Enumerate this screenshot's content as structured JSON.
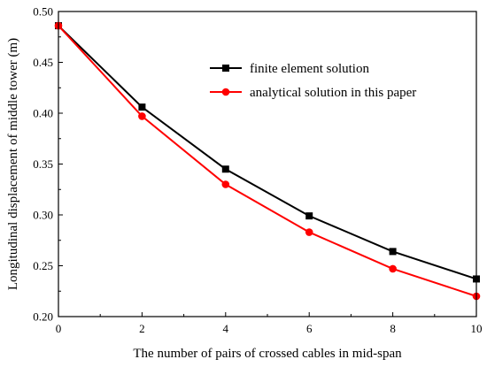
{
  "chart_data": {
    "type": "line",
    "xlabel": "The number of pairs of crossed cables in mid-span",
    "ylabel": "Longitudinal displacement of middle tower (m)",
    "xlim": [
      0,
      10
    ],
    "ylim": [
      0.2,
      0.5
    ],
    "xticks": [
      "0",
      "2",
      "4",
      "6",
      "8",
      "10"
    ],
    "yticks": [
      "0.20",
      "0.25",
      "0.30",
      "0.35",
      "0.40",
      "0.45",
      "0.50"
    ],
    "grid": false,
    "legend_position": "top-right",
    "x": [
      0,
      2,
      4,
      6,
      8,
      10
    ],
    "series": [
      {
        "name": "finite element solution",
        "color": "#000000",
        "marker": "square",
        "values": [
          0.486,
          0.406,
          0.345,
          0.299,
          0.264,
          0.237
        ]
      },
      {
        "name": "analytical solution in this paper",
        "color": "#ff0000",
        "marker": "circle",
        "values": [
          0.486,
          0.397,
          0.33,
          0.283,
          0.247,
          0.22
        ]
      }
    ]
  }
}
